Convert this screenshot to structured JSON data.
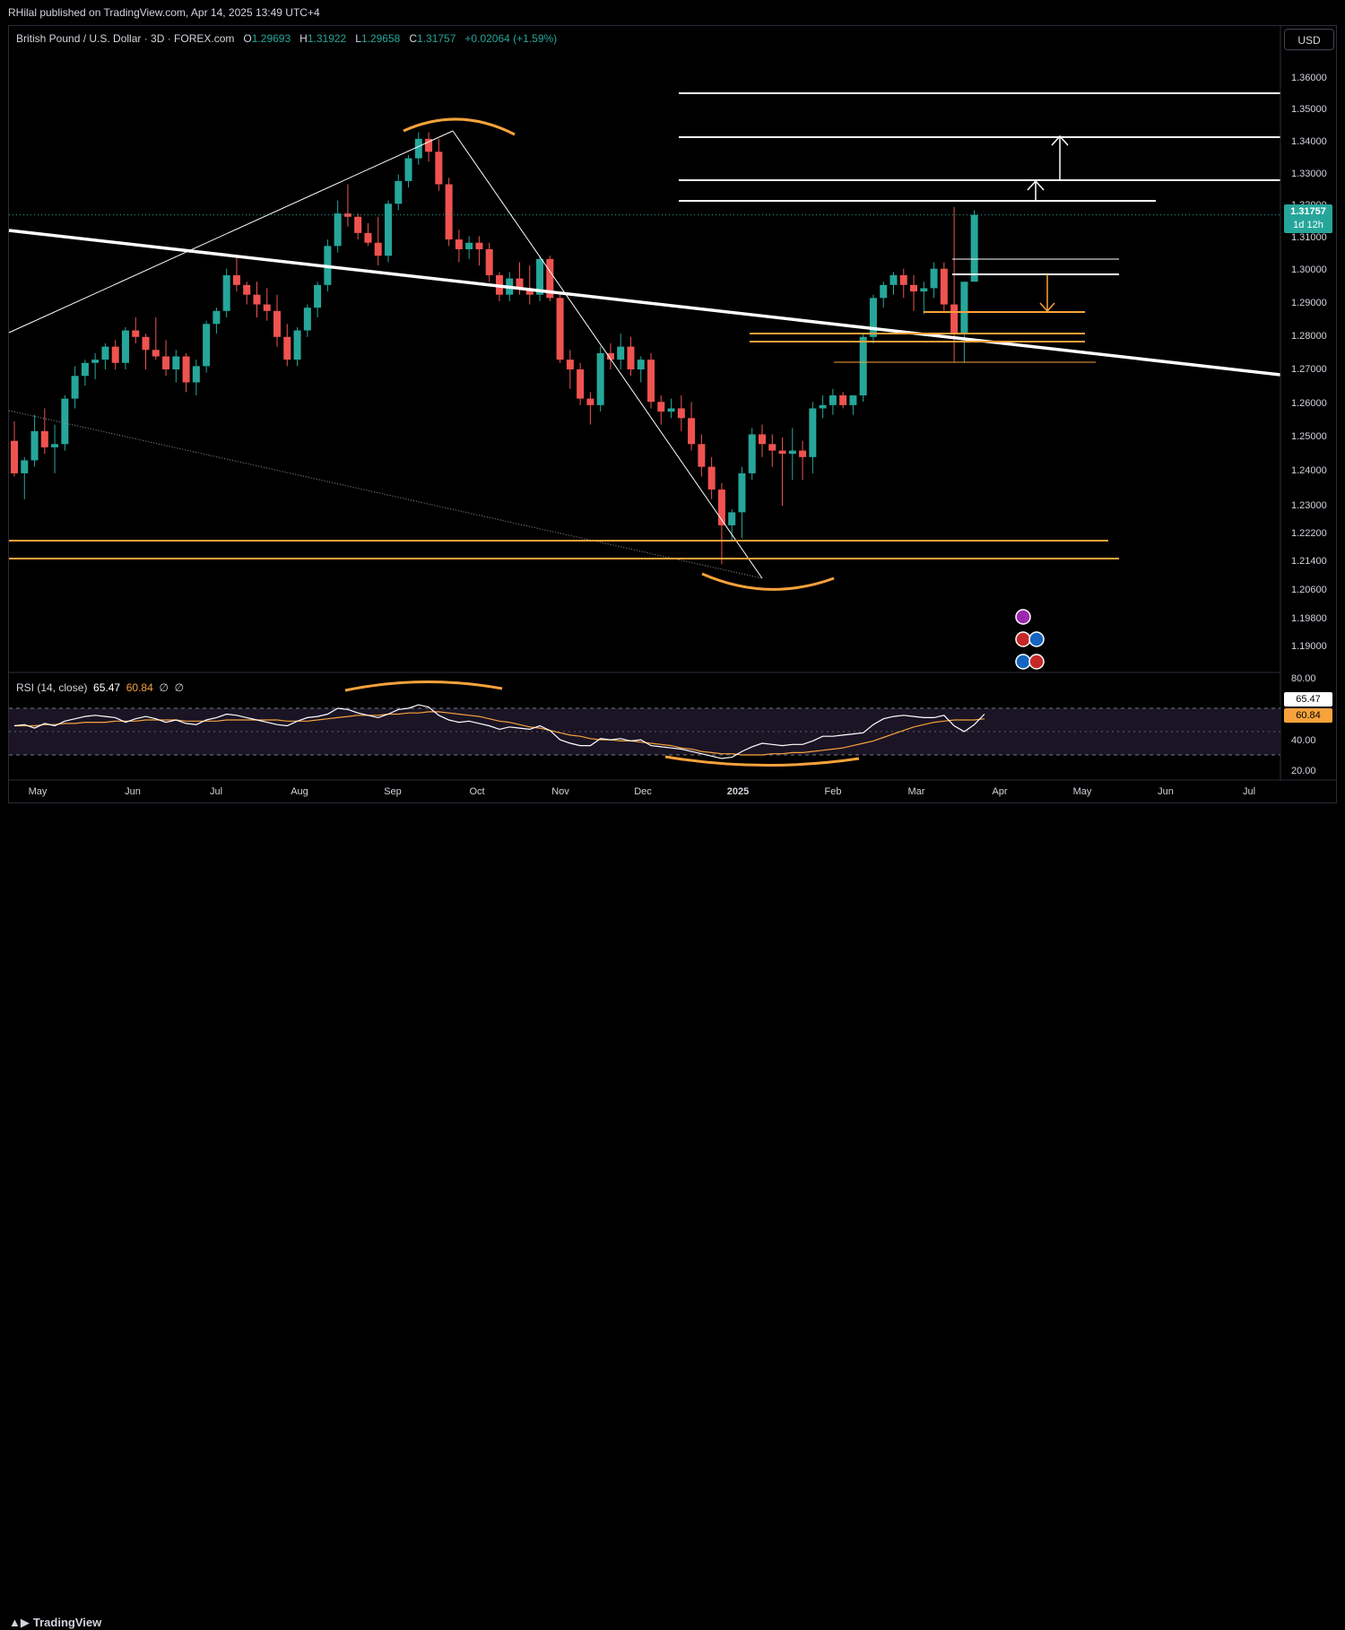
{
  "header": {
    "publisher": "RHilal published on TradingView.com, Apr 14, 2025 13:49 UTC+4"
  },
  "legend": {
    "symbol": "British Pound / U.S. Dollar · 3D · FOREX.com",
    "o_label": "O",
    "o": "1.29693",
    "h_label": "H",
    "h": "1.31922",
    "l_label": "L",
    "l": "1.29658",
    "c_label": "C",
    "c": "1.31757",
    "change": "+0.02064 (+1.59%)"
  },
  "currency_button": "USD",
  "last_price": {
    "price": "1.31757",
    "countdown": "1d 12h",
    "color": "#26a69a"
  },
  "rsi": {
    "label": "RSI (14, close)",
    "value": "65.47",
    "ma_value": "60.84",
    "extra1": "∅",
    "extra2": "∅",
    "line_color": "#ffffff",
    "ma_color": "#f7a23b",
    "axis_ticks": [
      "80.00",
      "40.00",
      "20.00"
    ]
  },
  "footer": {
    "brand": "TradingView"
  },
  "colors": {
    "up": "#26a69a",
    "down": "#ef5350",
    "orange": "#f7a23b",
    "white": "#ffffff",
    "background": "#000000"
  },
  "chart_data": {
    "type": "candlestick",
    "title": "British Pound / U.S. Dollar · 3D · FOREX.com",
    "y_ticks": [
      "1.36000",
      "1.35000",
      "1.34000",
      "1.33000",
      "1.32000",
      "1.31000",
      "1.30000",
      "1.29000",
      "1.28000",
      "1.27000",
      "1.26000",
      "1.25000",
      "1.24000",
      "1.23000",
      "1.22200",
      "1.21400",
      "1.20600",
      "1.19800",
      "1.19000"
    ],
    "x_ticks": [
      "May",
      "Jun",
      "Jul",
      "Aug",
      "Sep",
      "Oct",
      "Nov",
      "Dec",
      "2025",
      "Feb",
      "Mar",
      "Apr",
      "May",
      "Jun",
      "Jul"
    ],
    "ylim": [
      1.186,
      1.366
    ],
    "grid": false,
    "candles": [
      [
        1.248,
        1.254,
        1.237,
        1.238
      ],
      [
        1.238,
        1.243,
        1.23,
        1.242
      ],
      [
        1.242,
        1.256,
        1.24,
        1.251
      ],
      [
        1.251,
        1.258,
        1.244,
        1.246
      ],
      [
        1.246,
        1.253,
        1.238,
        1.247
      ],
      [
        1.247,
        1.262,
        1.245,
        1.261
      ],
      [
        1.261,
        1.271,
        1.258,
        1.268
      ],
      [
        1.268,
        1.273,
        1.265,
        1.272
      ],
      [
        1.272,
        1.275,
        1.267,
        1.273
      ],
      [
        1.273,
        1.278,
        1.27,
        1.277
      ],
      [
        1.277,
        1.279,
        1.27,
        1.272
      ],
      [
        1.272,
        1.283,
        1.27,
        1.282
      ],
      [
        1.282,
        1.286,
        1.278,
        1.28
      ],
      [
        1.28,
        1.281,
        1.27,
        1.276
      ],
      [
        1.276,
        1.286,
        1.273,
        1.274
      ],
      [
        1.274,
        1.279,
        1.268,
        1.27
      ],
      [
        1.27,
        1.276,
        1.266,
        1.274
      ],
      [
        1.274,
        1.275,
        1.263,
        1.266
      ],
      [
        1.266,
        1.273,
        1.262,
        1.271
      ],
      [
        1.271,
        1.285,
        1.269,
        1.284
      ],
      [
        1.284,
        1.289,
        1.281,
        1.288
      ],
      [
        1.288,
        1.301,
        1.286,
        1.299
      ],
      [
        1.299,
        1.305,
        1.294,
        1.296
      ],
      [
        1.296,
        1.297,
        1.29,
        1.293
      ],
      [
        1.293,
        1.297,
        1.286,
        1.29
      ],
      [
        1.29,
        1.295,
        1.285,
        1.288
      ],
      [
        1.288,
        1.293,
        1.277,
        1.28
      ],
      [
        1.28,
        1.284,
        1.271,
        1.273
      ],
      [
        1.273,
        1.283,
        1.271,
        1.282
      ],
      [
        1.282,
        1.29,
        1.28,
        1.289
      ],
      [
        1.289,
        1.297,
        1.286,
        1.296
      ],
      [
        1.296,
        1.31,
        1.294,
        1.308
      ],
      [
        1.308,
        1.322,
        1.306,
        1.318
      ],
      [
        1.318,
        1.327,
        1.314,
        1.317
      ],
      [
        1.317,
        1.318,
        1.31,
        1.312
      ],
      [
        1.312,
        1.315,
        1.308,
        1.309
      ],
      [
        1.309,
        1.317,
        1.302,
        1.305
      ],
      [
        1.305,
        1.322,
        1.303,
        1.321
      ],
      [
        1.321,
        1.33,
        1.319,
        1.328
      ],
      [
        1.328,
        1.336,
        1.326,
        1.335
      ],
      [
        1.335,
        1.343,
        1.333,
        1.341
      ],
      [
        1.341,
        1.343,
        1.334,
        1.337
      ],
      [
        1.337,
        1.341,
        1.325,
        1.327
      ],
      [
        1.327,
        1.329,
        1.308,
        1.31
      ],
      [
        1.31,
        1.313,
        1.303,
        1.307
      ],
      [
        1.307,
        1.311,
        1.304,
        1.309
      ],
      [
        1.309,
        1.311,
        1.302,
        1.307
      ],
      [
        1.307,
        1.309,
        1.297,
        1.299
      ],
      [
        1.299,
        1.3,
        1.291,
        1.293
      ],
      [
        1.293,
        1.3,
        1.291,
        1.298
      ],
      [
        1.298,
        1.303,
        1.293,
        1.295
      ],
      [
        1.295,
        1.302,
        1.29,
        1.293
      ],
      [
        1.293,
        1.305,
        1.291,
        1.304
      ],
      [
        1.304,
        1.305,
        1.291,
        1.292
      ],
      [
        1.292,
        1.293,
        1.272,
        1.273
      ],
      [
        1.273,
        1.276,
        1.264,
        1.27
      ],
      [
        1.27,
        1.272,
        1.259,
        1.261
      ],
      [
        1.261,
        1.263,
        1.253,
        1.259
      ],
      [
        1.259,
        1.277,
        1.257,
        1.275
      ],
      [
        1.275,
        1.278,
        1.27,
        1.273
      ],
      [
        1.273,
        1.281,
        1.27,
        1.277
      ],
      [
        1.277,
        1.28,
        1.268,
        1.27
      ],
      [
        1.27,
        1.274,
        1.266,
        1.273
      ],
      [
        1.273,
        1.275,
        1.258,
        1.26
      ],
      [
        1.26,
        1.262,
        1.253,
        1.257
      ],
      [
        1.257,
        1.261,
        1.255,
        1.258
      ],
      [
        1.258,
        1.262,
        1.251,
        1.255
      ],
      [
        1.255,
        1.26,
        1.245,
        1.247
      ],
      [
        1.247,
        1.25,
        1.237,
        1.24
      ],
      [
        1.24,
        1.243,
        1.23,
        1.233
      ],
      [
        1.233,
        1.235,
        1.21,
        1.222
      ],
      [
        1.222,
        1.227,
        1.217,
        1.226
      ],
      [
        1.226,
        1.24,
        1.218,
        1.238
      ],
      [
        1.238,
        1.252,
        1.236,
        1.25
      ],
      [
        1.25,
        1.253,
        1.243,
        1.247
      ],
      [
        1.247,
        1.25,
        1.24,
        1.245
      ],
      [
        1.245,
        1.249,
        1.228,
        1.244
      ],
      [
        1.244,
        1.252,
        1.236,
        1.245
      ],
      [
        1.245,
        1.248,
        1.236,
        1.243
      ],
      [
        1.243,
        1.26,
        1.238,
        1.258
      ],
      [
        1.258,
        1.262,
        1.255,
        1.259
      ],
      [
        1.259,
        1.264,
        1.256,
        1.262
      ],
      [
        1.262,
        1.263,
        1.258,
        1.259
      ],
      [
        1.259,
        1.262,
        1.256,
        1.262
      ],
      [
        1.262,
        1.281,
        1.26,
        1.28
      ],
      [
        1.28,
        1.293,
        1.278,
        1.292
      ],
      [
        1.292,
        1.297,
        1.289,
        1.296
      ],
      [
        1.296,
        1.3,
        1.293,
        1.299
      ],
      [
        1.299,
        1.301,
        1.292,
        1.296
      ],
      [
        1.296,
        1.299,
        1.288,
        1.294
      ],
      [
        1.294,
        1.297,
        1.287,
        1.295
      ],
      [
        1.295,
        1.303,
        1.292,
        1.301
      ],
      [
        1.301,
        1.303,
        1.288,
        1.29
      ],
      [
        1.29,
        1.32,
        1.272,
        1.281
      ],
      [
        1.281,
        1.296,
        1.272,
        1.297
      ],
      [
        1.297,
        1.319,
        1.297,
        1.3176
      ]
    ],
    "rsi_series": [
      55,
      56,
      53,
      57,
      55,
      59,
      61,
      63,
      64,
      63,
      62,
      58,
      61,
      63,
      61,
      58,
      60,
      57,
      56,
      60,
      62,
      65,
      64,
      62,
      60,
      58,
      56,
      55,
      59,
      62,
      63,
      65,
      70,
      69,
      66,
      64,
      62,
      65,
      69,
      70,
      73,
      71,
      64,
      60,
      58,
      59,
      57,
      55,
      52,
      54,
      53,
      52,
      55,
      51,
      43,
      40,
      38,
      38,
      44,
      43,
      44,
      42,
      43,
      38,
      37,
      36,
      35,
      33,
      31,
      29,
      27,
      28,
      33,
      37,
      40,
      39,
      38,
      39,
      39,
      42,
      46,
      46,
      47,
      48,
      49,
      56,
      61,
      63,
      64,
      63,
      62,
      62,
      64,
      55,
      50,
      56,
      65
    ],
    "rsi_ma_series": [
      55,
      55,
      55,
      56,
      56,
      57,
      57,
      58,
      58,
      58,
      59,
      59,
      59,
      60,
      60,
      60,
      60,
      59,
      59,
      59,
      59,
      60,
      60,
      60,
      60,
      60,
      60,
      59,
      59,
      59,
      60,
      61,
      62,
      63,
      64,
      64,
      64,
      65,
      65,
      66,
      66,
      67,
      67,
      66,
      65,
      64,
      63,
      61,
      59,
      58,
      56,
      54,
      53,
      51,
      49,
      47,
      46,
      44,
      43,
      43,
      42,
      42,
      41,
      40,
      39,
      38,
      36,
      35,
      33,
      32,
      31,
      31,
      30,
      30,
      30,
      31,
      31,
      32,
      32,
      33,
      34,
      35,
      36,
      38,
      40,
      42,
      45,
      48,
      51,
      54,
      56,
      58,
      59,
      60,
      60,
      60,
      61
    ]
  }
}
